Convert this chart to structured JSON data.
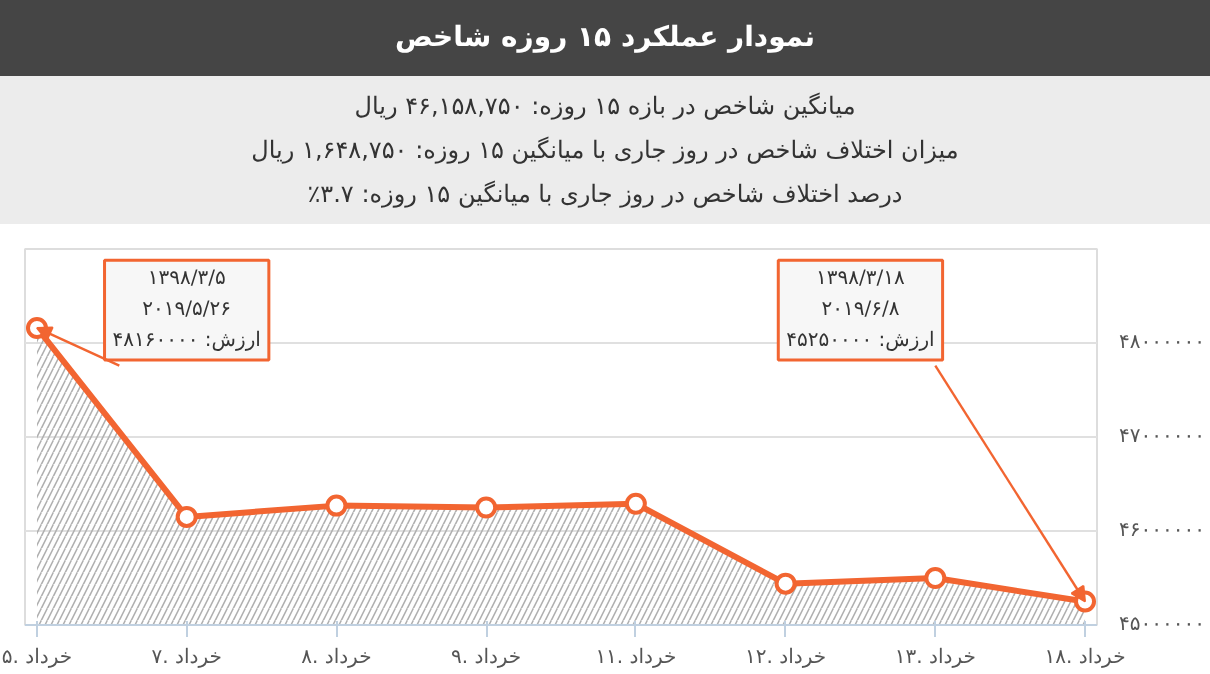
{
  "chart_data": {
    "type": "area",
    "title": "نمودار عملکرد ۱۵ روزه شاخص",
    "subtitle": "میانگین شاخص در بازه ۱۵ روزه: ۴۶,۱۵۸,۷۵۰ ریال",
    "annotations": [
      "میزان اختلاف شاخص در روز جاری با میانگین ۱۵ روزه: ۱,۶۴۸,۷۵۰ ریال",
      "درصد اختلاف شاخص در روز جاری با میانگین ۱۵ روزه: ۳.۷٪",
      {
        "text": "۱۳۹۸/۳/۵\n۲۰۱۹/۵/۲۶\nارزش: ۴۸۱۶۰۰۰۰",
        "x": "۵. خرداد",
        "y": 48160000
      },
      {
        "text": "۱۳۹۸/۳/۱۸\n۲۰۱۹/۶/۸\nارزش: ۴۵۲۵۰۰۰۰",
        "x": "۱۸. خرداد",
        "y": 45250000
      }
    ],
    "categories": [
      "۵. خرداد",
      "۷. خرداد",
      "۸. خرداد",
      "۹. خرداد",
      "۱۱. خرداد",
      "۱۲. خرداد",
      "۱۳. خرداد",
      "۱۸. خرداد"
    ],
    "series": [
      {
        "color": "#f26531",
        "values": [
          48160000,
          46150000,
          46270000,
          46250000,
          46290000,
          45440000,
          45500000,
          45250000
        ]
      }
    ],
    "ylim": [
      45000000,
      49000000
    ],
    "yticks": [
      {
        "value": 45000000,
        "label": "۴۵۰۰۰۰۰۰"
      },
      {
        "value": 46000000,
        "label": "۴۶۰۰۰۰۰۰"
      },
      {
        "value": 47000000,
        "label": "۴۷۰۰۰۰۰۰"
      },
      {
        "value": 48000000,
        "label": "۴۸۰۰۰۰۰۰"
      }
    ],
    "grid": "y",
    "marker": "circle"
  }
}
